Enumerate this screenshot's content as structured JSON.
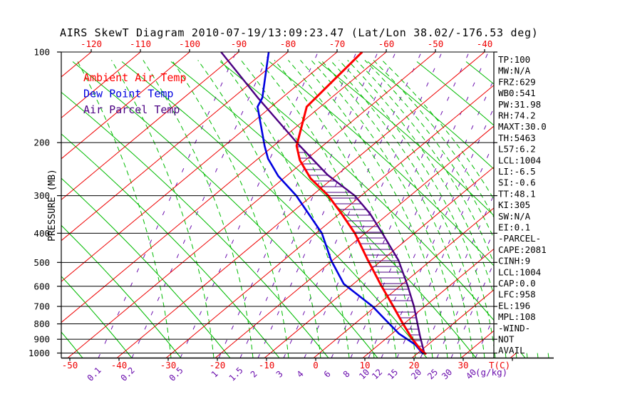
{
  "title": "AIRS SkewT Diagram 2010-07-19/13:09:23.47 (Lat/Lon 38.02/-176.53 deg)",
  "legend": {
    "ambient": "Ambient Air Temp",
    "dew": "Dew Point Temp",
    "parcel": "Air Parcel Temp"
  },
  "axes": {
    "left_title": "PRESSURE (MB)",
    "left_labels": [
      100,
      200,
      300,
      400,
      500,
      600,
      700,
      800,
      900,
      1000
    ],
    "top_labels": [
      -120,
      -110,
      -100,
      -90,
      -80,
      -70,
      -60,
      -50,
      -40
    ],
    "bottom_temp_labels": [
      -50,
      -40,
      -30,
      -20,
      -10,
      0,
      10,
      20,
      30
    ],
    "bottom_temp_unit": "T(C)",
    "mixing_unit": "(g/kg)",
    "mixing_labels": [
      "0.1",
      "0.2",
      "0.5",
      "1",
      "1.5",
      "2",
      "3",
      "4",
      "6",
      "8",
      "10",
      "12",
      "15",
      "20",
      "25",
      "30",
      "40"
    ]
  },
  "right_panel": [
    "TP:100",
    "MW:N/A",
    "FRZ:629",
    "WB0:541",
    "PW:31.98",
    "RH:74.2",
    "MAXT:30.0",
    "TH:5463",
    "L57:6.2",
    "LCL:1004",
    "LI:-6.5",
    "SI:-0.6",
    "TT:48.1",
    "KI:305",
    "SW:N/A",
    "EI:0.1",
    "-PARCEL-",
    "CAPE:2081",
    "CINH:9",
    "LCL:1004",
    "CAP:0.0",
    "LFC:958",
    "EL:196",
    "MPL:108",
    "-WIND-",
    "NOT",
    "AVAIL"
  ],
  "colors": {
    "isotherm": "#ee0000",
    "ambient": "#ff0000",
    "dew": "#0000e0",
    "parcel": "#4b0082",
    "dry_adiabat": "#00bb00",
    "moist_adiabat": "#00bb00",
    "mixing": "#6a0dad",
    "grid": "#000000",
    "title": "#000000"
  },
  "chart_data": {
    "type": "line",
    "title": "AIRS SkewT Diagram 2010-07-19/13:09:23.47 (Lat/Lon 38.02/-176.53 deg)",
    "xlabel": "Temperature T(C), skewed",
    "ylabel": "PRESSURE (MB), log scale",
    "pressure_range": [
      100,
      1040
    ],
    "isotherms": {
      "min": -120,
      "max": 40,
      "step": 10
    },
    "pressure_lines": [
      100,
      200,
      300,
      400,
      500,
      600,
      700,
      800,
      900,
      1000
    ],
    "series": [
      {
        "name": "Ambient Air Temp",
        "color": "#ff0000",
        "points_p_t": [
          [
            1010,
            22.0
          ],
          [
            972,
            19.6
          ],
          [
            894,
            15.2
          ],
          [
            794,
            9.5
          ],
          [
            700,
            3.6
          ],
          [
            595,
            -4.1
          ],
          [
            492,
            -12.8
          ],
          [
            400,
            -22.1
          ],
          [
            345,
            -29.5
          ],
          [
            300,
            -36.7
          ],
          [
            263,
            -44.5
          ],
          [
            229,
            -51.1
          ],
          [
            205,
            -55.3
          ],
          [
            152,
            -62.8
          ],
          [
            100,
            -64.9
          ]
        ]
      },
      {
        "name": "Dew Point Temp",
        "color": "#0000e0",
        "points_p_t": [
          [
            1007,
            21.3
          ],
          [
            936,
            17.3
          ],
          [
            862,
            11.4
          ],
          [
            772,
            5.0
          ],
          [
            700,
            -0.6
          ],
          [
            589,
            -12.0
          ],
          [
            492,
            -20.3
          ],
          [
            400,
            -28.8
          ],
          [
            300,
            -43.2
          ],
          [
            258,
            -51.7
          ],
          [
            226,
            -58.0
          ],
          [
            205,
            -61.8
          ],
          [
            152,
            -72.8
          ],
          [
            142,
            -74.0
          ],
          [
            100,
            -83.9
          ]
        ]
      },
      {
        "name": "Air Parcel Temp",
        "color": "#4b0082",
        "points_p_t": [
          [
            1008,
            21.6
          ],
          [
            874,
            16.1
          ],
          [
            783,
            12.0
          ],
          [
            700,
            7.8
          ],
          [
            595,
            1.3
          ],
          [
            492,
            -6.6
          ],
          [
            400,
            -16.5
          ],
          [
            345,
            -23.7
          ],
          [
            300,
            -31.3
          ],
          [
            256,
            -41.9
          ],
          [
            229,
            -48.3
          ],
          [
            202,
            -55.5
          ],
          [
            142,
            -74.9
          ],
          [
            100,
            -93.6
          ]
        ]
      }
    ],
    "cape_hatch": {
      "between": [
        "Ambient Air Temp",
        "Air Parcel Temp"
      ],
      "p_bottom": 958,
      "p_top": 200
    },
    "mixing_ratio_lines": {
      "values": [
        0.1,
        0.2,
        0.5,
        1,
        1.5,
        2,
        3,
        4,
        6,
        8,
        10,
        12,
        15,
        20,
        25,
        30,
        40
      ],
      "bottom_x": [
        138,
        185,
        253,
        307,
        337,
        362,
        398,
        427,
        465,
        492,
        517,
        535,
        557,
        590,
        613,
        633,
        667
      ]
    },
    "dry_adiabat_bottom_x": [
      -229,
      -160,
      -91,
      -22,
      47,
      116,
      185,
      254,
      323,
      392,
      461,
      530,
      599,
      668,
      737,
      806,
      875,
      944,
      1013,
      1082
    ],
    "moist_adiabat_bottom_x": [
      240,
      300,
      355,
      405,
      450,
      490,
      525,
      556,
      583,
      607,
      628,
      647,
      664,
      680,
      695,
      710,
      725,
      740,
      755,
      770
    ]
  }
}
